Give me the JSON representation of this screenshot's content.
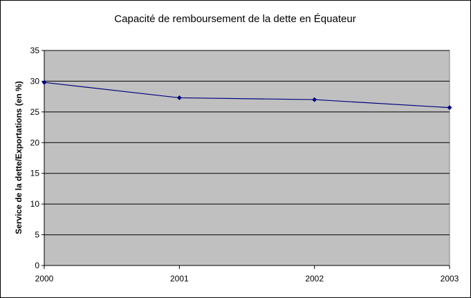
{
  "chart_data": {
    "type": "line",
    "title": "Capacité de remboursement de la dette en Équateur",
    "xlabel": "",
    "ylabel": "Service de la dette/Exportations (en %)",
    "categories": [
      "2000",
      "2001",
      "2002",
      "2003"
    ],
    "series": [
      {
        "values": [
          29.8,
          27.3,
          27.0,
          25.7
        ]
      }
    ],
    "ylim": [
      0,
      35
    ],
    "yticks": [
      "0",
      "5",
      "10",
      "15",
      "20",
      "25",
      "30",
      "35"
    ],
    "grid": true,
    "legend": "none",
    "colors": {
      "plot_background": "#c0c0c0",
      "line": "#000080",
      "grid": "#000000"
    }
  }
}
